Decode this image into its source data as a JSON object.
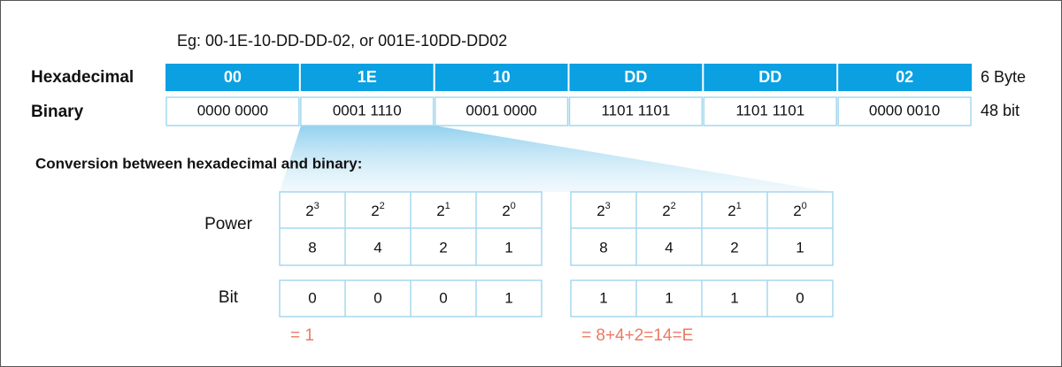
{
  "example": "Eg: 00-1E-10-DD-DD-02, or 001E-10DD-DD02",
  "mac_table": {
    "row_labels": [
      "Hexadecimal",
      "Binary"
    ],
    "hex": [
      "00",
      "1E",
      "10",
      "DD",
      "DD",
      "02"
    ],
    "binary": [
      "0000 0000",
      "0001 1110",
      "0001 0000",
      "1101 1101",
      "1101 1101",
      "0000 0010"
    ],
    "sizes": [
      "6 Byte",
      "48 bit"
    ]
  },
  "conversion": {
    "title": "Conversion between hexadecimal and binary:",
    "row_labels": [
      "Power",
      "Bit"
    ],
    "groups": [
      {
        "powers": [
          {
            "base": "2",
            "exponent": "3"
          },
          {
            "base": "2",
            "exponent": "2"
          },
          {
            "base": "2",
            "exponent": "1"
          },
          {
            "base": "2",
            "exponent": "0"
          }
        ],
        "weights": [
          "8",
          "4",
          "2",
          "1"
        ],
        "bits": [
          "0",
          "0",
          "0",
          "1"
        ],
        "result": "= 1"
      },
      {
        "powers": [
          {
            "base": "2",
            "exponent": "3"
          },
          {
            "base": "2",
            "exponent": "2"
          },
          {
            "base": "2",
            "exponent": "1"
          },
          {
            "base": "2",
            "exponent": "0"
          }
        ],
        "weights": [
          "8",
          "4",
          "2",
          "1"
        ],
        "bits": [
          "1",
          "1",
          "1",
          "0"
        ],
        "result": "= 8+4+2=14=E"
      }
    ]
  }
}
